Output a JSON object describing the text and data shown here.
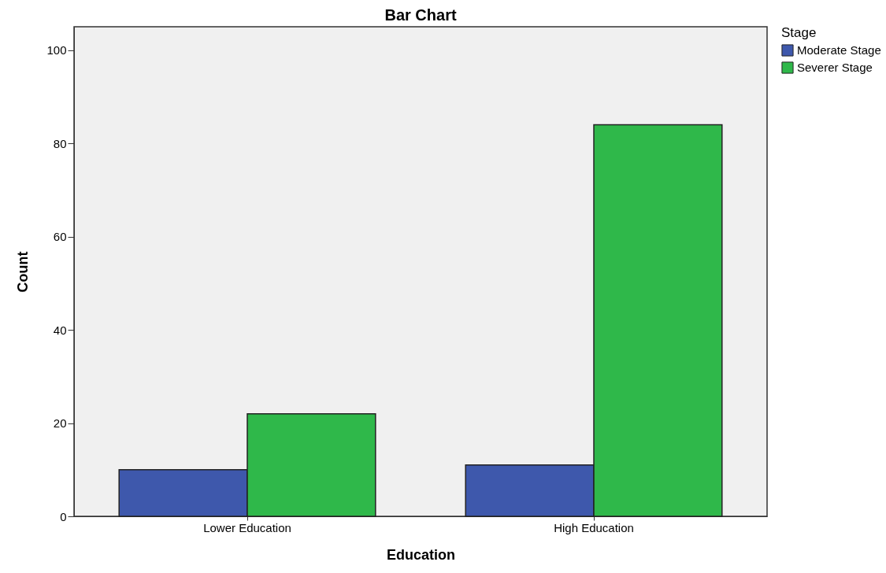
{
  "chart_data": {
    "type": "bar",
    "title": "Bar Chart",
    "xlabel": "Education",
    "ylabel": "Count",
    "legend_title": "Stage",
    "categories": [
      "Lower Education",
      "High Education"
    ],
    "series": [
      {
        "name": "Moderate Stage",
        "color": "#3e58ac",
        "values": [
          10,
          11
        ]
      },
      {
        "name": "Severer Stage",
        "color": "#2fb84a",
        "values": [
          22,
          84
        ]
      }
    ],
    "ylim": [
      0,
      105
    ],
    "yticks": [
      0,
      20,
      40,
      60,
      80,
      100
    ],
    "grid": false,
    "legend": "top right"
  }
}
